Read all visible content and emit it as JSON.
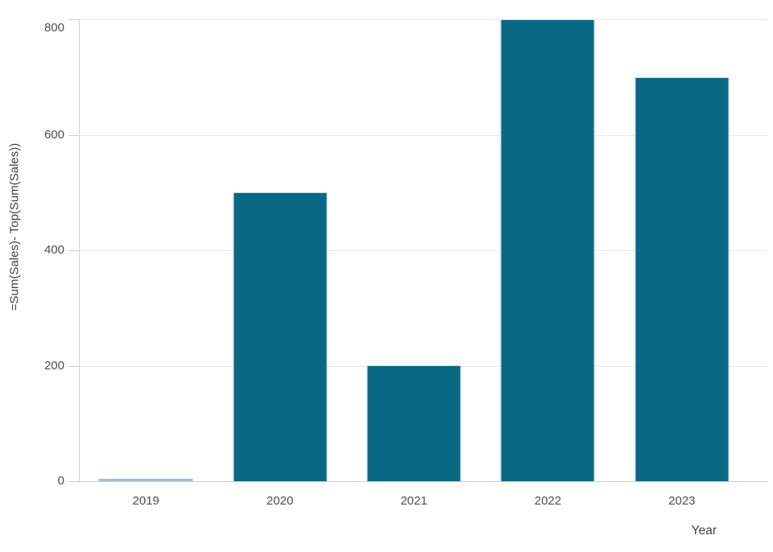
{
  "chart_data": {
    "type": "bar",
    "title": "",
    "categories": [
      "2019",
      "2020",
      "2021",
      "2022",
      "2023"
    ],
    "values": [
      0,
      500,
      200,
      800,
      700
    ],
    "xlabel": "Year",
    "ylabel": "=Sum(Sales)- Top(Sum(Sales))",
    "ylim": [
      0,
      800
    ],
    "yticks": [
      0,
      200,
      400,
      600,
      800
    ],
    "grid": true,
    "legend_position": "none",
    "colors": {
      "bar": "#0a6885",
      "bar_border": "#bdd7e0",
      "zero_bar": "#9fbfce",
      "gridline": "#e8e8e8",
      "axis_line": "#d4d4d4",
      "tick_text": "#4d4d4d",
      "axis_title_text": "#404040"
    }
  }
}
